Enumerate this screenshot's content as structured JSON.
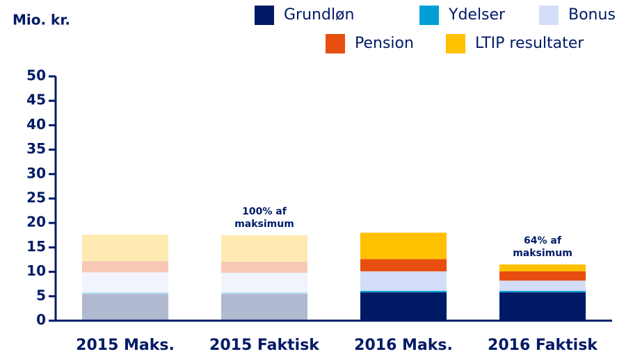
{
  "chart_data": {
    "type": "stacked_bar",
    "title": "Mio. kr.",
    "categories": [
      "2015 Maks.",
      "2015 Faktisk",
      "2016 Maks.",
      "2016 Faktisk"
    ],
    "category_opacity": [
      0.3,
      0.3,
      1,
      1
    ],
    "series": [
      {
        "name": "Grundløn",
        "color": "#001a66",
        "values": [
          5.5,
          5.5,
          5.8,
          5.8
        ]
      },
      {
        "name": "Ydelser",
        "color": "#00a0d6",
        "values": [
          0.3,
          0.3,
          0.3,
          0.3
        ]
      },
      {
        "name": "Bonus",
        "color": "#d4ddf7",
        "values": [
          4.1,
          4.0,
          4.0,
          2.1
        ]
      },
      {
        "name": "Pension",
        "color": "#e84e0f",
        "values": [
          2.3,
          2.3,
          2.5,
          1.9
        ]
      },
      {
        "name": "LTIP resultater",
        "color": "#ffc000",
        "values": [
          5.4,
          5.4,
          5.4,
          1.4
        ]
      }
    ],
    "annotations": [
      {
        "category": "2015 Faktisk",
        "lines": [
          "100% af",
          "maksimum"
        ]
      },
      {
        "category": "2016 Faktisk",
        "lines": [
          "64% af",
          "maksimum"
        ]
      }
    ],
    "ylim": [
      0,
      50
    ],
    "yticks": [
      0,
      5,
      10,
      15,
      20,
      25,
      30,
      35,
      40,
      45,
      50
    ],
    "grid": false
  }
}
